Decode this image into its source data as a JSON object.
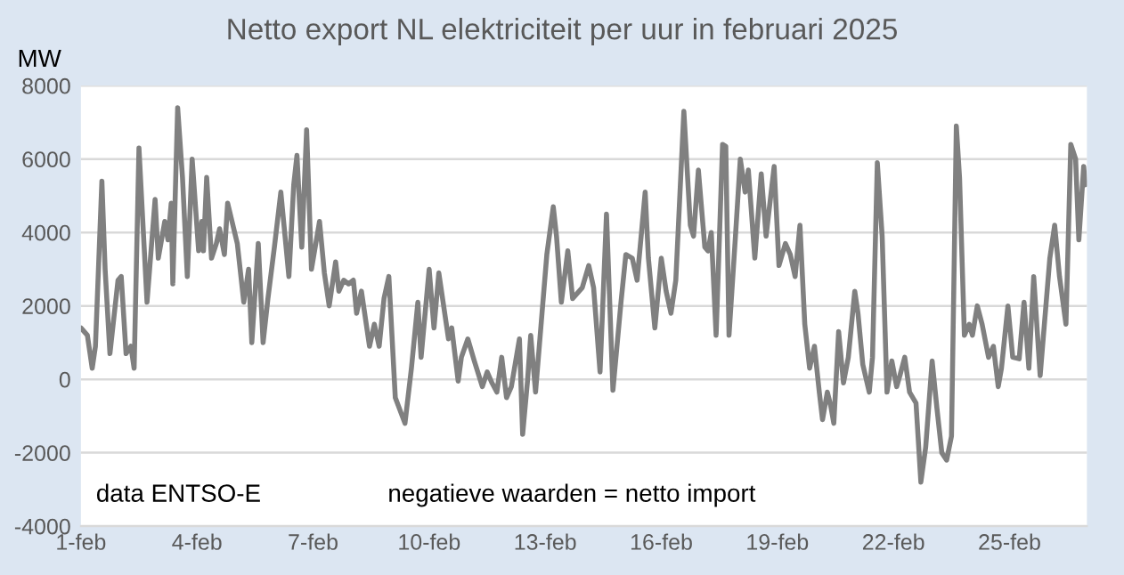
{
  "chart_data": {
    "type": "line",
    "title": "Netto export NL elektriciteit per uur in februari 2025",
    "ylabel": "MW",
    "annotations": [
      "data ENTSO-E",
      "negatieve waarden = netto import"
    ],
    "color": "#808080",
    "grid": "y",
    "xlim": [
      "2025-02-01T00:00",
      "2025-02-27T00:00"
    ],
    "ylim": [
      -4000,
      8000
    ],
    "xticks": [
      {
        "value": "2025-02-01",
        "label": "1-feb"
      },
      {
        "value": "2025-02-04",
        "label": "4-feb"
      },
      {
        "value": "2025-02-07",
        "label": "7-feb"
      },
      {
        "value": "2025-02-10",
        "label": "10-feb"
      },
      {
        "value": "2025-02-13",
        "label": "13-feb"
      },
      {
        "value": "2025-02-16",
        "label": "16-feb"
      },
      {
        "value": "2025-02-19",
        "label": "19-feb"
      },
      {
        "value": "2025-02-22",
        "label": "22-feb"
      },
      {
        "value": "2025-02-25",
        "label": "25-feb"
      }
    ],
    "yticks": [
      -4000,
      -2000,
      0,
      2000,
      4000,
      6000,
      8000
    ],
    "x": [
      "2025-02-01T00:00",
      "2025-02-01T04:00",
      "2025-02-01T07:00",
      "2025-02-01T09:00",
      "2025-02-01T13:00",
      "2025-02-01T15:00",
      "2025-02-01T18:00",
      "2025-02-01T23:00",
      "2025-02-02T01:00",
      "2025-02-02T04:00",
      "2025-02-02T07:00",
      "2025-02-02T09:00",
      "2025-02-02T12:00",
      "2025-02-02T17:00",
      "2025-02-02T22:00",
      "2025-02-03T00:00",
      "2025-02-03T04:00",
      "2025-02-03T06:00",
      "2025-02-03T08:00",
      "2025-02-03T09:00",
      "2025-02-03T12:00",
      "2025-02-03T15:00",
      "2025-02-03T18:00",
      "2025-02-03T21:00",
      "2025-02-04T01:00",
      "2025-02-04T03:00",
      "2025-02-04T04:00",
      "2025-02-04T06:00",
      "2025-02-04T09:00",
      "2025-02-04T12:00",
      "2025-02-04T14:00",
      "2025-02-04T17:00",
      "2025-02-04T19:00",
      "2025-02-05T01:00",
      "2025-02-05T05:00",
      "2025-02-05T08:00",
      "2025-02-05T10:00",
      "2025-02-05T14:00",
      "2025-02-05T17:00",
      "2025-02-05T20:00",
      "2025-02-06T00:00",
      "2025-02-06T04:00",
      "2025-02-06T09:00",
      "2025-02-06T12:00",
      "2025-02-06T14:00",
      "2025-02-06T17:00",
      "2025-02-06T20:00",
      "2025-02-06T23:00",
      "2025-02-07T04:00",
      "2025-02-07T07:00",
      "2025-02-07T10:00",
      "2025-02-07T14:00",
      "2025-02-07T16:00",
      "2025-02-07T19:00",
      "2025-02-07T22:00",
      "2025-02-08T01:00",
      "2025-02-08T03:00",
      "2025-02-08T06:00",
      "2025-02-08T11:00",
      "2025-02-08T14:00",
      "2025-02-08T17:00",
      "2025-02-08T20:00",
      "2025-02-08T23:00",
      "2025-02-09T03:00",
      "2025-02-09T09:00",
      "2025-02-09T13:00",
      "2025-02-09T17:00",
      "2025-02-09T19:00",
      "2025-02-10T00:00",
      "2025-02-10T03:00",
      "2025-02-10T06:00",
      "2025-02-10T12:00",
      "2025-02-10T14:00",
      "2025-02-10T18:00",
      "2025-02-10T20:00",
      "2025-02-11T00:00",
      "2025-02-11T04:00",
      "2025-02-11T09:00",
      "2025-02-11T12:00",
      "2025-02-11T15:00",
      "2025-02-11T18:00",
      "2025-02-11T21:00",
      "2025-02-12T00:00",
      "2025-02-12T03:00",
      "2025-02-12T08:00",
      "2025-02-12T10:00",
      "2025-02-12T13:00",
      "2025-02-12T15:00",
      "2025-02-12T18:00",
      "2025-02-12T22:00",
      "2025-02-13T01:00",
      "2025-02-13T05:00",
      "2025-02-13T07:00",
      "2025-02-13T10:00",
      "2025-02-13T14:00",
      "2025-02-13T17:00",
      "2025-02-13T23:00",
      "2025-02-14T03:00",
      "2025-02-14T06:00",
      "2025-02-14T10:00",
      "2025-02-14T14:00",
      "2025-02-14T18:00",
      "2025-02-14T23:00",
      "2025-02-15T02:00",
      "2025-02-15T06:00",
      "2025-02-15T09:00",
      "2025-02-15T14:00",
      "2025-02-15T16:00",
      "2025-02-15T20:00",
      "2025-02-16T00:00",
      "2025-02-16T03:00",
      "2025-02-16T06:00",
      "2025-02-16T09:00",
      "2025-02-16T14:00",
      "2025-02-16T18:00",
      "2025-02-16T20:00",
      "2025-02-16T23:00",
      "2025-02-17T03:00",
      "2025-02-17T05:00",
      "2025-02-17T07:00",
      "2025-02-17T10:00",
      "2025-02-17T14:00",
      "2025-02-17T16:00",
      "2025-02-17T18:00",
      "2025-02-17T22:00",
      "2025-02-18T01:00",
      "2025-02-18T04:00",
      "2025-02-18T06:00",
      "2025-02-18T10:00",
      "2025-02-18T14:00",
      "2025-02-18T17:00",
      "2025-02-18T22:00",
      "2025-02-19T01:00",
      "2025-02-19T05:00",
      "2025-02-19T08:00",
      "2025-02-19T11:00",
      "2025-02-19T14:00",
      "2025-02-19T17:00",
      "2025-02-19T20:00",
      "2025-02-19T23:00",
      "2025-02-20T02:00",
      "2025-02-20T04:00",
      "2025-02-20T07:00",
      "2025-02-20T09:00",
      "2025-02-20T11:00",
      "2025-02-20T14:00",
      "2025-02-20T17:00",
      "2025-02-20T20:00",
      "2025-02-21T00:00",
      "2025-02-21T02:00",
      "2025-02-21T05:00",
      "2025-02-21T09:00",
      "2025-02-21T11:00",
      "2025-02-21T14:00",
      "2025-02-21T17:00",
      "2025-02-21T20:00",
      "2025-02-21T23:00",
      "2025-02-22T02:00",
      "2025-02-22T04:00",
      "2025-02-22T07:00",
      "2025-02-22T10:00",
      "2025-02-22T14:00",
      "2025-02-22T17:00",
      "2025-02-22T20:00",
      "2025-02-23T00:00",
      "2025-02-23T03:00",
      "2025-02-23T06:00",
      "2025-02-23T09:00",
      "2025-02-23T12:00",
      "2025-02-23T15:00",
      "2025-02-23T17:00",
      "2025-02-23T20:00",
      "2025-02-23T23:00",
      "2025-02-24T01:00",
      "2025-02-24T04:00",
      "2025-02-24T07:00",
      "2025-02-24T11:00",
      "2025-02-24T14:00",
      "2025-02-24T17:00",
      "2025-02-24T19:00",
      "2025-02-24T23:00",
      "2025-02-25T02:00",
      "2025-02-25T06:00",
      "2025-02-25T09:00",
      "2025-02-25T12:00",
      "2025-02-25T15:00",
      "2025-02-25T19:00",
      "2025-02-26T01:00",
      "2025-02-26T04:00",
      "2025-02-26T07:00",
      "2025-02-26T11:00",
      "2025-02-26T14:00",
      "2025-02-26T17:00",
      "2025-02-26T19:00",
      "2025-02-26T22:00",
      "2025-02-26T23:00"
    ],
    "values": [
      1400,
      1200,
      300,
      900,
      5400,
      3000,
      700,
      2700,
      2800,
      700,
      900,
      300,
      6300,
      2100,
      4900,
      3300,
      4300,
      3800,
      4800,
      2600,
      7400,
      5500,
      2800,
      6000,
      3500,
      4300,
      3500,
      5500,
      3300,
      3700,
      4100,
      3400,
      4800,
      3700,
      2100,
      3000,
      1000,
      3700,
      1000,
      2200,
      3600,
      5100,
      2800,
      5300,
      6100,
      3600,
      6800,
      3000,
      4300,
      2900,
      2000,
      3200,
      2400,
      2700,
      2600,
      2700,
      1800,
      2400,
      900,
      1500,
      900,
      2200,
      2800,
      -500,
      -1200,
      300,
      2100,
      600,
      3000,
      1400,
      2900,
      1100,
      1400,
      -50,
      600,
      1100,
      500,
      -200,
      200,
      -100,
      -350,
      600,
      -500,
      -200,
      1100,
      -1500,
      -50,
      1200,
      -350,
      1800,
      3400,
      4700,
      3900,
      2100,
      3500,
      2200,
      2500,
      3100,
      2500,
      200,
      4500,
      -300,
      2100,
      3400,
      3300,
      2700,
      5100,
      3300,
      1400,
      3300,
      2400,
      1800,
      2700,
      7300,
      4200,
      3900,
      5700,
      3600,
      3500,
      4000,
      1200,
      6400,
      6350,
      1200,
      3900,
      6000,
      5100,
      5700,
      3300,
      5600,
      3900,
      5800,
      3100,
      3700,
      3400,
      2800,
      4200,
      1500,
      300,
      900,
      -350,
      -1100,
      -350,
      -700,
      -1200,
      1300,
      -100,
      600,
      2400,
      1800,
      400,
      -350,
      600,
      5900,
      3900,
      -350,
      500,
      -200,
      100,
      600,
      -350,
      -650,
      -2800,
      -1850,
      500,
      -800,
      -2000,
      -2200,
      -1550,
      6900,
      5500,
      1200,
      1500,
      1200,
      2000,
      1500,
      600,
      900,
      -200,
      300,
      2000,
      600,
      560,
      2100,
      300,
      2800,
      100,
      3300,
      4200,
      2800,
      1500,
      6400,
      6000,
      3800,
      5800,
      5300
    ]
  }
}
